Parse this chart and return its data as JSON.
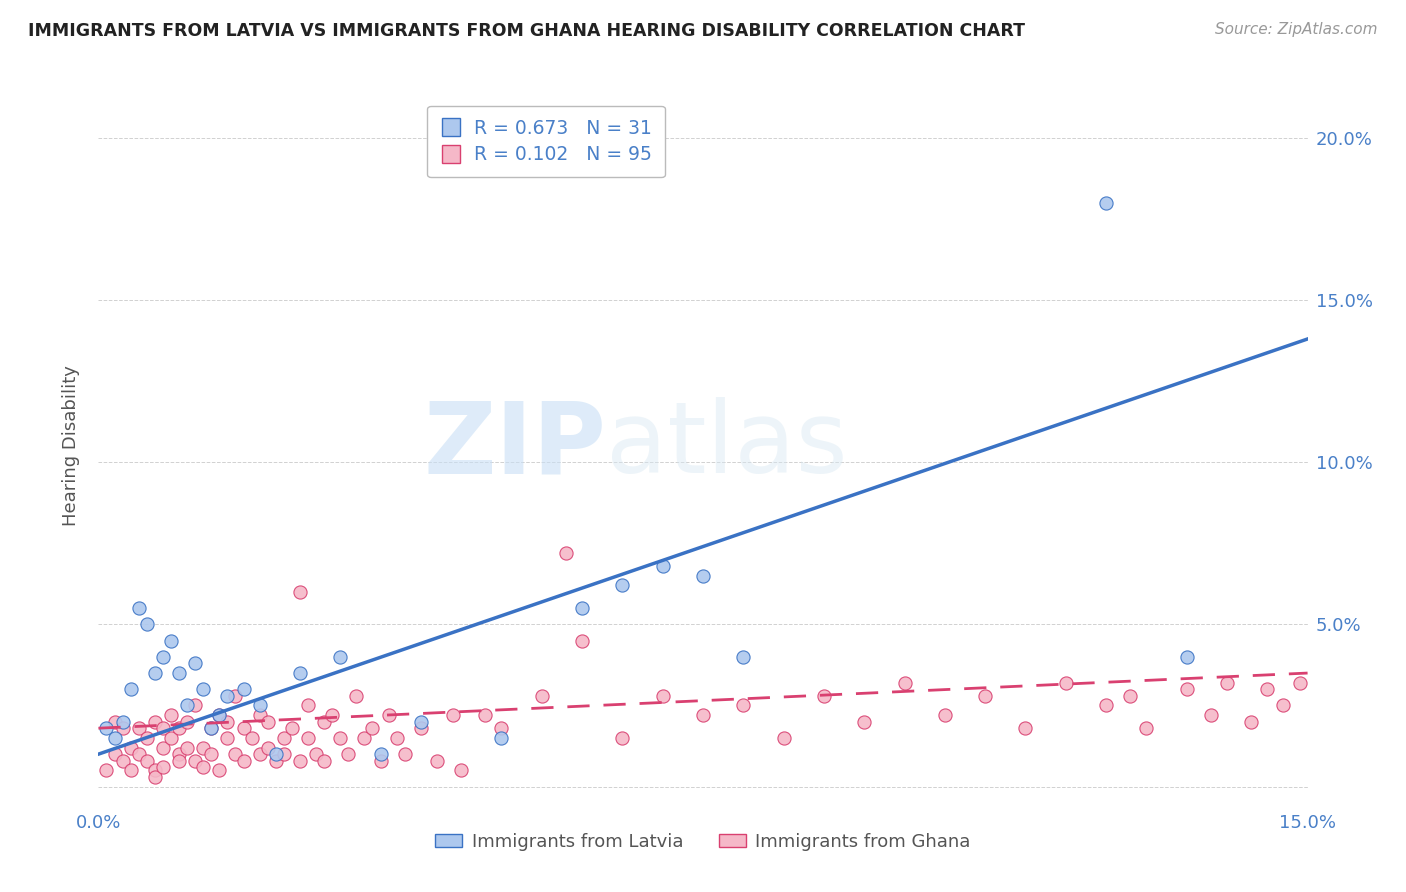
{
  "title": "IMMIGRANTS FROM LATVIA VS IMMIGRANTS FROM GHANA HEARING DISABILITY CORRELATION CHART",
  "source": "Source: ZipAtlas.com",
  "ylabel": "Hearing Disability",
  "xlim": [
    0.0,
    0.15
  ],
  "ylim": [
    -0.005,
    0.215
  ],
  "yticks": [
    0.0,
    0.05,
    0.1,
    0.15,
    0.2
  ],
  "ytick_labels": [
    "",
    "5.0%",
    "10.0%",
    "15.0%",
    "20.0%"
  ],
  "xticks": [
    0.0,
    0.05,
    0.1,
    0.15
  ],
  "xtick_labels": [
    "0.0%",
    "",
    "",
    "15.0%"
  ],
  "legend_labels": [
    "Immigrants from Latvia",
    "Immigrants from Ghana"
  ],
  "legend_R_latvia": "0.673",
  "legend_N_latvia": "31",
  "legend_R_ghana": "0.102",
  "legend_N_ghana": "95",
  "color_latvia": "#adc8ee",
  "color_ghana": "#f5b8c8",
  "line_color_latvia": "#3a72c4",
  "line_color_ghana": "#d94070",
  "background_color": "#ffffff",
  "watermark_zip": "ZIP",
  "watermark_atlas": "atlas",
  "latvia_x": [
    0.001,
    0.002,
    0.003,
    0.004,
    0.005,
    0.006,
    0.007,
    0.008,
    0.009,
    0.01,
    0.011,
    0.012,
    0.013,
    0.014,
    0.015,
    0.016,
    0.018,
    0.02,
    0.022,
    0.025,
    0.03,
    0.035,
    0.04,
    0.05,
    0.06,
    0.065,
    0.07,
    0.075,
    0.08,
    0.125,
    0.135
  ],
  "latvia_y": [
    0.018,
    0.015,
    0.02,
    0.03,
    0.055,
    0.05,
    0.035,
    0.04,
    0.045,
    0.035,
    0.025,
    0.038,
    0.03,
    0.018,
    0.022,
    0.028,
    0.03,
    0.025,
    0.01,
    0.035,
    0.04,
    0.01,
    0.02,
    0.015,
    0.055,
    0.062,
    0.068,
    0.065,
    0.04,
    0.18,
    0.04
  ],
  "ghana_x": [
    0.001,
    0.002,
    0.002,
    0.003,
    0.003,
    0.004,
    0.004,
    0.005,
    0.005,
    0.006,
    0.006,
    0.007,
    0.007,
    0.007,
    0.008,
    0.008,
    0.008,
    0.009,
    0.009,
    0.01,
    0.01,
    0.01,
    0.011,
    0.011,
    0.012,
    0.012,
    0.013,
    0.013,
    0.014,
    0.014,
    0.015,
    0.015,
    0.016,
    0.016,
    0.017,
    0.017,
    0.018,
    0.018,
    0.019,
    0.02,
    0.02,
    0.021,
    0.021,
    0.022,
    0.023,
    0.023,
    0.024,
    0.025,
    0.025,
    0.026,
    0.026,
    0.027,
    0.028,
    0.028,
    0.029,
    0.03,
    0.031,
    0.032,
    0.033,
    0.034,
    0.035,
    0.036,
    0.037,
    0.038,
    0.04,
    0.042,
    0.044,
    0.045,
    0.048,
    0.05,
    0.055,
    0.058,
    0.06,
    0.065,
    0.07,
    0.075,
    0.08,
    0.085,
    0.09,
    0.095,
    0.1,
    0.105,
    0.11,
    0.115,
    0.12,
    0.125,
    0.128,
    0.13,
    0.135,
    0.138,
    0.14,
    0.143,
    0.145,
    0.147,
    0.149
  ],
  "ghana_y": [
    0.005,
    0.01,
    0.02,
    0.008,
    0.018,
    0.005,
    0.012,
    0.01,
    0.018,
    0.008,
    0.015,
    0.005,
    0.02,
    0.003,
    0.012,
    0.018,
    0.006,
    0.015,
    0.022,
    0.01,
    0.018,
    0.008,
    0.012,
    0.02,
    0.008,
    0.025,
    0.012,
    0.006,
    0.018,
    0.01,
    0.022,
    0.005,
    0.015,
    0.02,
    0.01,
    0.028,
    0.008,
    0.018,
    0.015,
    0.022,
    0.01,
    0.012,
    0.02,
    0.008,
    0.015,
    0.01,
    0.018,
    0.008,
    0.06,
    0.015,
    0.025,
    0.01,
    0.02,
    0.008,
    0.022,
    0.015,
    0.01,
    0.028,
    0.015,
    0.018,
    0.008,
    0.022,
    0.015,
    0.01,
    0.018,
    0.008,
    0.022,
    0.005,
    0.022,
    0.018,
    0.028,
    0.072,
    0.045,
    0.015,
    0.028,
    0.022,
    0.025,
    0.015,
    0.028,
    0.02,
    0.032,
    0.022,
    0.028,
    0.018,
    0.032,
    0.025,
    0.028,
    0.018,
    0.03,
    0.022,
    0.032,
    0.02,
    0.03,
    0.025,
    0.032
  ]
}
